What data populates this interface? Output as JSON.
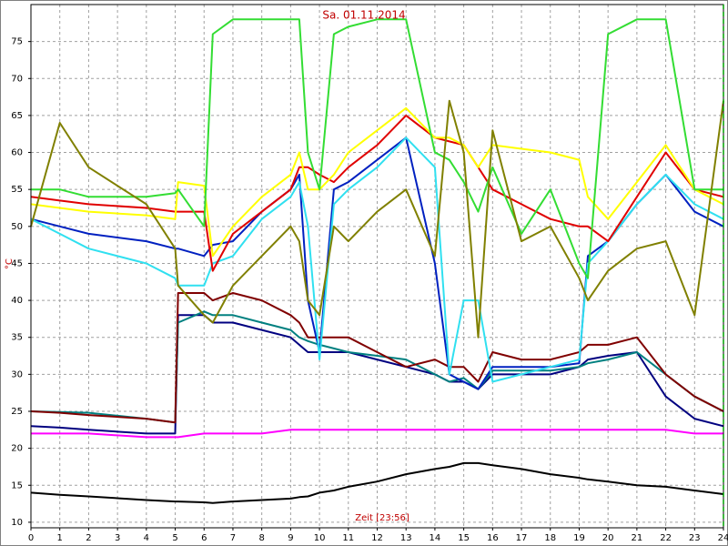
{
  "chart_data": {
    "type": "line",
    "title": "Sa. 01.11.2014",
    "x_label": "Zeit [23:56]",
    "y_label": "°C",
    "grid": true,
    "xlim": [
      0,
      24
    ],
    "xticks": [
      0,
      1,
      2,
      3,
      4,
      5,
      6,
      7,
      8,
      9,
      10,
      11,
      12,
      13,
      14,
      15,
      16,
      17,
      18,
      19,
      20,
      21,
      22,
      23,
      24
    ],
    "ylim": [
      9.25,
      80
    ],
    "yticks": [
      10,
      15,
      20,
      25,
      30,
      35,
      40,
      45,
      50,
      55,
      60,
      65,
      70,
      75
    ],
    "x": [
      0,
      1,
      2,
      4,
      5,
      5.1,
      6,
      6.3,
      7,
      8,
      9,
      9.3,
      9.6,
      10,
      10.5,
      11,
      12,
      13,
      14,
      14.5,
      15,
      15.5,
      16,
      17,
      18,
      19,
      19.3,
      20,
      21,
      22,
      23,
      24
    ],
    "series": [
      {
        "color": "#000000",
        "values": [
          14,
          13.7,
          13.5,
          13,
          12.8,
          12.8,
          12.7,
          12.6,
          12.8,
          13,
          13.2,
          13.4,
          13.5,
          14,
          14.3,
          14.8,
          15.5,
          16.5,
          17.2,
          17.5,
          18,
          18,
          17.7,
          17.2,
          16.5,
          16,
          15.8,
          15.5,
          15,
          14.8,
          14.3,
          13.8
        ]
      },
      {
        "color": "#ff00ff",
        "values": [
          22,
          22,
          22,
          21.5,
          21.5,
          21.5,
          22,
          22,
          22,
          22,
          22.5,
          22.5,
          22.5,
          22.5,
          22.5,
          22.5,
          22.5,
          22.5,
          22.5,
          22.5,
          22.5,
          22.5,
          22.5,
          22.5,
          22.5,
          22.5,
          22.5,
          22.5,
          22.5,
          22.5,
          22,
          22
        ]
      },
      {
        "color": "#000080",
        "values": [
          23,
          22.8,
          22.5,
          22,
          22,
          38,
          38,
          37,
          37,
          36,
          35,
          34,
          33,
          33,
          33,
          33,
          32,
          31,
          30,
          29,
          29,
          28,
          30,
          30,
          30,
          31,
          32,
          32.5,
          33,
          27,
          24,
          23
        ]
      },
      {
        "color": "#008080",
        "values": [
          25,
          24.9,
          24.8,
          24,
          23.5,
          37,
          38.5,
          38,
          38,
          37,
          36,
          35,
          34.5,
          34,
          33.5,
          33,
          32.5,
          32,
          30,
          29,
          29.5,
          28,
          30.5,
          30.5,
          30.5,
          31,
          31.5,
          32,
          33,
          30,
          27,
          25
        ]
      },
      {
        "color": "#800000",
        "values": [
          25,
          24.8,
          24.5,
          24,
          23.5,
          41,
          41,
          40,
          41,
          40,
          38,
          37,
          35,
          35,
          35,
          35,
          33,
          31,
          32,
          31,
          31,
          29,
          33,
          32,
          32,
          33,
          34,
          34,
          35,
          30,
          27,
          25
        ]
      },
      {
        "color": "#0020c0",
        "values": [
          51,
          50,
          49,
          48,
          47,
          47,
          46,
          47.5,
          48,
          52,
          55,
          57,
          40,
          33,
          55,
          56,
          59,
          62,
          45,
          30,
          29,
          28,
          31,
          31,
          31,
          31.5,
          46,
          48,
          53,
          57,
          52,
          50
        ]
      },
      {
        "color": "#30e0f0",
        "values": [
          51,
          49,
          47,
          45,
          43,
          42,
          42,
          45,
          46,
          51,
          54,
          56,
          50,
          32,
          53,
          55,
          58,
          62,
          58,
          30,
          40,
          40,
          29,
          30,
          31,
          32,
          45,
          48,
          53,
          57,
          53,
          51
        ]
      },
      {
        "color": "#e00000",
        "values": [
          54,
          53.5,
          53,
          52.5,
          52,
          52,
          52,
          44,
          49,
          52,
          55,
          58,
          58,
          57,
          56,
          58,
          61,
          65,
          62,
          61.5,
          61,
          58,
          55,
          53,
          51,
          50,
          50,
          48,
          54,
          60,
          55,
          54
        ]
      },
      {
        "color": "#ffff00",
        "values": [
          53,
          52.5,
          52,
          51.5,
          51,
          56,
          55.5,
          46,
          50,
          54,
          57,
          60,
          55,
          55,
          57,
          60,
          63,
          66,
          62,
          62,
          61,
          58,
          61,
          60.5,
          60,
          59,
          54,
          51,
          56,
          61,
          55,
          53
        ]
      },
      {
        "color": "#33dd33",
        "values": [
          55,
          55,
          54,
          54,
          54.5,
          55,
          50,
          76,
          78,
          78,
          78,
          78,
          60,
          55,
          76,
          77,
          78,
          78,
          60,
          59,
          56,
          52,
          58,
          49,
          55,
          45,
          43,
          76,
          78,
          78,
          55,
          55
        ]
      },
      {
        "color": "#808000",
        "values": [
          50,
          64,
          58,
          53,
          47,
          42,
          38,
          37,
          42,
          46,
          50,
          48,
          40,
          38,
          50,
          48,
          52,
          55,
          46,
          67,
          60,
          35,
          63,
          48,
          50,
          43,
          40,
          44,
          47,
          48,
          38,
          67
        ]
      }
    ]
  }
}
